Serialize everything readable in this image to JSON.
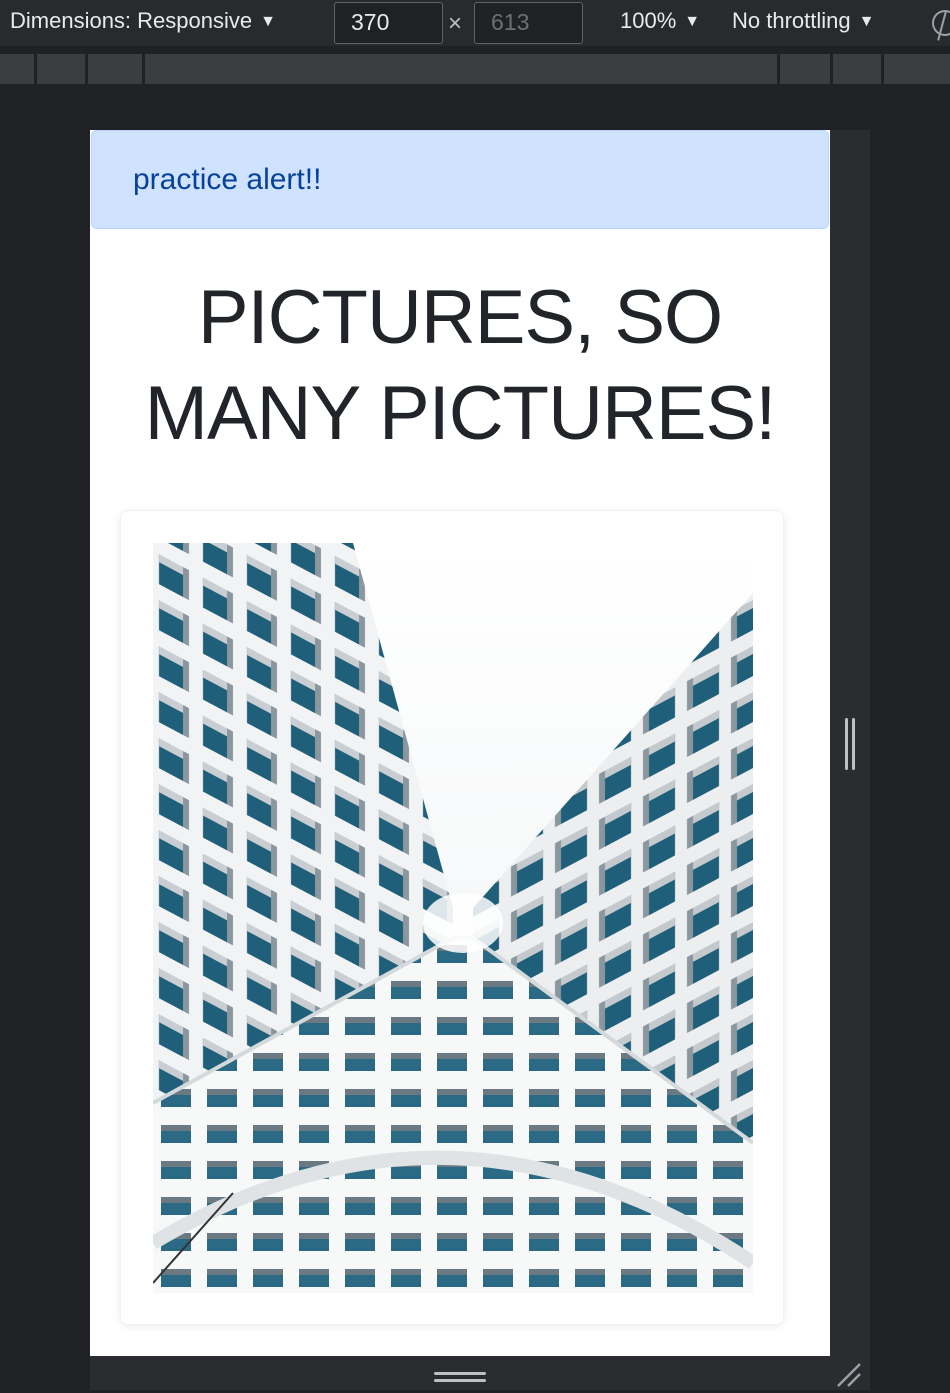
{
  "devtools": {
    "dimensions_label": "Dimensions: Responsive",
    "width_value": "370",
    "height_value": "613",
    "times_symbol": "×",
    "zoom_label": "100%",
    "throttling_label": "No throttling",
    "caret": "▼"
  },
  "page": {
    "alert_text": "practice alert!!",
    "heading_line1": "PICTURES, SO",
    "heading_line2": "MANY PICTURES!"
  },
  "colors": {
    "alert_bg": "#cfe2ff",
    "alert_text": "#084298",
    "heading": "#212529",
    "window_teal": "#1f5f7a"
  },
  "icons": {
    "rotate": "rotate-icon",
    "photo": "building-photo"
  }
}
